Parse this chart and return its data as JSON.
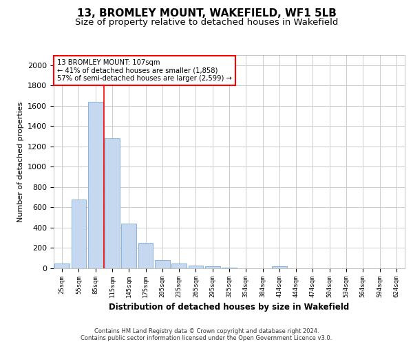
{
  "title": "13, BROMLEY MOUNT, WAKEFIELD, WF1 5LB",
  "subtitle": "Size of property relative to detached houses in Wakefield",
  "xlabel": "Distribution of detached houses by size in Wakefield",
  "ylabel": "Number of detached properties",
  "footer_line1": "Contains HM Land Registry data © Crown copyright and database right 2024.",
  "footer_line2": "Contains public sector information licensed under the Open Government Licence v3.0.",
  "annotation_line1": "13 BROMLEY MOUNT: 107sqm",
  "annotation_line2": "← 41% of detached houses are smaller (1,858)",
  "annotation_line3": "57% of semi-detached houses are larger (2,599) →",
  "bar_categories": [
    "25sqm",
    "55sqm",
    "85sqm",
    "115sqm",
    "145sqm",
    "175sqm",
    "205sqm",
    "235sqm",
    "265sqm",
    "295sqm",
    "325sqm",
    "354sqm",
    "384sqm",
    "414sqm",
    "444sqm",
    "474sqm",
    "504sqm",
    "534sqm",
    "564sqm",
    "594sqm",
    "624sqm"
  ],
  "bar_values": [
    50,
    680,
    1640,
    1280,
    440,
    250,
    80,
    45,
    27,
    20,
    10,
    0,
    0,
    20,
    0,
    0,
    0,
    0,
    0,
    0,
    0
  ],
  "bar_color": "#c5d8f0",
  "bar_edge_color": "#7aaed4",
  "ylim": [
    0,
    2100
  ],
  "yticks": [
    0,
    200,
    400,
    600,
    800,
    1000,
    1200,
    1400,
    1600,
    1800,
    2000
  ],
  "grid_color": "#cccccc",
  "title_fontsize": 11,
  "subtitle_fontsize": 9.5
}
